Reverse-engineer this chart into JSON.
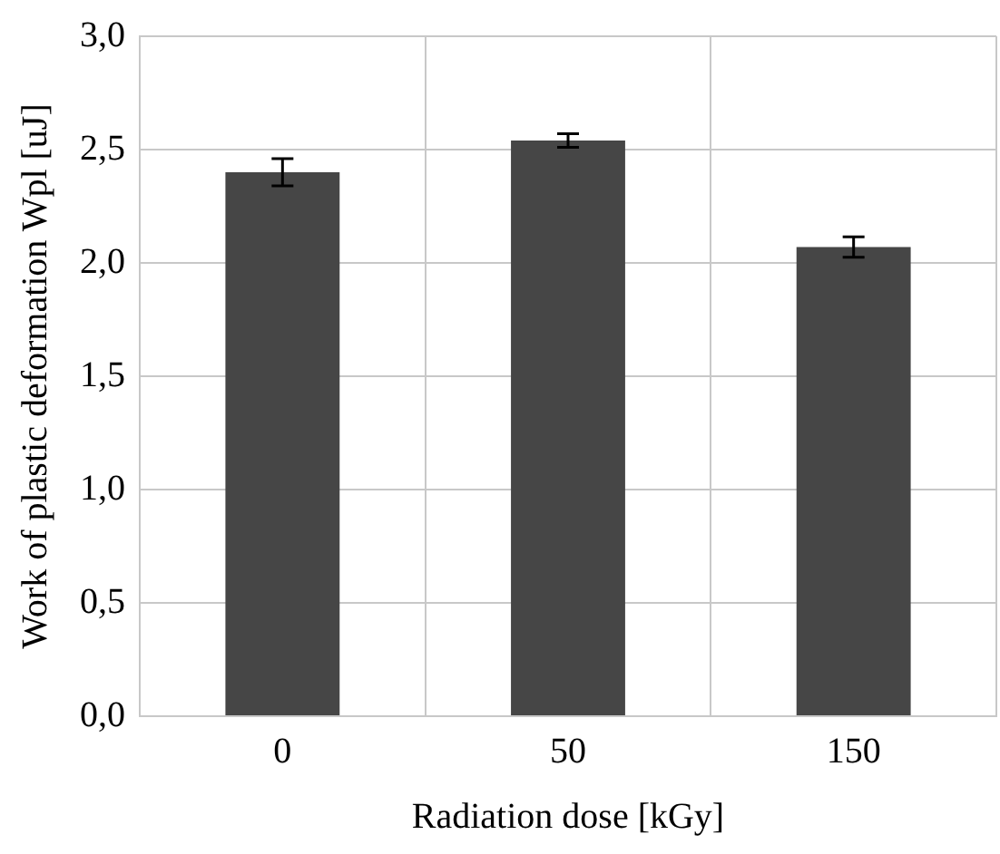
{
  "chart_data": {
    "type": "bar",
    "xlabel": "Radiation dose [kGy]",
    "ylabel": "Work of plastic deformation Wpl [uJ]",
    "categories": [
      "0",
      "50",
      "150"
    ],
    "values": [
      2.4,
      2.54,
      2.07
    ],
    "errors": [
      0.06,
      0.03,
      0.045
    ],
    "color": "#464646",
    "ylim": [
      0,
      3
    ],
    "yticks": [
      {
        "value": 0,
        "label": "0,0"
      },
      {
        "value": 0.5,
        "label": "0,5"
      },
      {
        "value": 1,
        "label": "1,0"
      },
      {
        "value": 1.5,
        "label": "1,5"
      },
      {
        "value": 2,
        "label": "2,0"
      },
      {
        "value": 2.5,
        "label": "2,5"
      },
      {
        "value": 3,
        "label": "3,0"
      }
    ],
    "grid": true,
    "legend": false
  }
}
